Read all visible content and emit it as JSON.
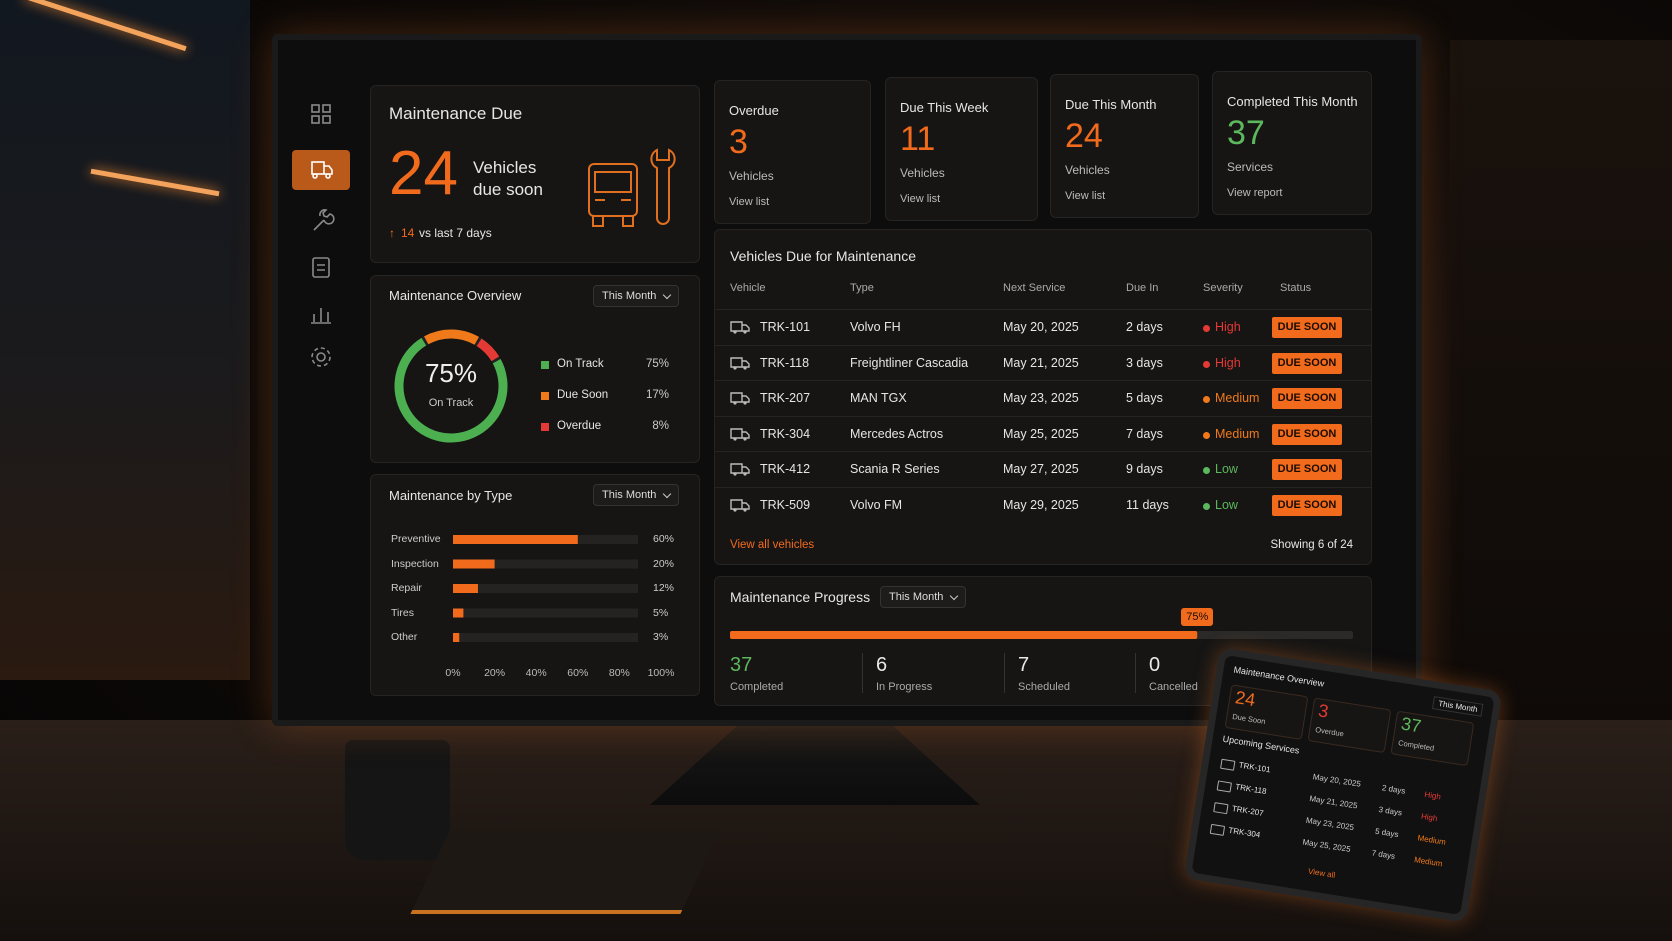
{
  "due_card": {
    "title": "Maintenance Due",
    "value": "24",
    "unit": "Vehicles",
    "unit_sub": "due soon",
    "change": "14",
    "change_text": "vs last 7 days"
  },
  "kpis": [
    {
      "title": "Overdue",
      "value": "3",
      "unit": "Vehicles",
      "link": "View list",
      "color": "#f26b1d"
    },
    {
      "title": "Due This Week",
      "value": "11",
      "unit": "Vehicles",
      "link": "View list",
      "color": "#f26b1d"
    },
    {
      "title": "Due This Month",
      "value": "24",
      "unit": "Vehicles",
      "link": "View list",
      "color": "#f26b1d"
    },
    {
      "title": "Completed This Month",
      "value": "37",
      "unit": "Services",
      "link": "View report",
      "color": "#5cb85c"
    }
  ],
  "overview": {
    "title": "Maintenance Overview",
    "filter": "This Month",
    "center_value": "75%",
    "center_label": "On Track",
    "segments": [
      {
        "name": "On Track",
        "value": 75,
        "label": "75%",
        "color": "#4caf50"
      },
      {
        "name": "Due Soon",
        "value": 17,
        "label": "17%",
        "color": "#f07a1a"
      },
      {
        "name": "Overdue",
        "value": 8,
        "label": "8%",
        "color": "#e53935"
      }
    ]
  },
  "by_type": {
    "title": "Maintenance by Type",
    "filter": "This Month",
    "color": "#f26b1d",
    "categories": [
      "Preventive",
      "Inspection",
      "Repair",
      "Tires",
      "Other"
    ],
    "values": [
      60,
      20,
      12,
      5,
      3
    ],
    "value_labels": [
      "60%",
      "20%",
      "12%",
      "5%",
      "3%"
    ],
    "xlim": [
      0,
      100
    ],
    "xticks": [
      {
        "value": 0,
        "label": "0%"
      },
      {
        "value": 20,
        "label": "20%"
      },
      {
        "value": 40,
        "label": "40%"
      },
      {
        "value": 60,
        "label": "60%"
      },
      {
        "value": 80,
        "label": "80%"
      },
      {
        "value": 100,
        "label": "100%"
      }
    ]
  },
  "table": {
    "title": "Vehicles Due for Maintenance",
    "columns": [
      "Vehicle",
      "Type",
      "Next Service",
      "Due In",
      "Severity",
      "Status"
    ],
    "rows": [
      {
        "vehicle": "TRK-101",
        "type": "Volvo FH",
        "next_service": "May 20, 2025",
        "due_in": "2 days",
        "severity": "High",
        "severity_color": "#e53935",
        "status": "DUE SOON"
      },
      {
        "vehicle": "TRK-118",
        "type": "Freightliner Cascadia",
        "next_service": "May 21, 2025",
        "due_in": "3 days",
        "severity": "High",
        "severity_color": "#e53935",
        "status": "DUE SOON"
      },
      {
        "vehicle": "TRK-207",
        "type": "MAN TGX",
        "next_service": "May 23, 2025",
        "due_in": "5 days",
        "severity": "Medium",
        "severity_color": "#f07a1a",
        "status": "DUE SOON"
      },
      {
        "vehicle": "TRK-304",
        "type": "Mercedes Actros",
        "next_service": "May 25, 2025",
        "due_in": "7 days",
        "severity": "Medium",
        "severity_color": "#f07a1a",
        "status": "DUE SOON"
      },
      {
        "vehicle": "TRK-412",
        "type": "Scania R Series",
        "next_service": "May 27, 2025",
        "due_in": "9 days",
        "severity": "Low",
        "severity_color": "#5cb85c",
        "status": "DUE SOON"
      },
      {
        "vehicle": "TRK-509",
        "type": "Volvo FM",
        "next_service": "May 29, 2025",
        "due_in": "11 days",
        "severity": "Low",
        "severity_color": "#5cb85c",
        "status": "DUE SOON"
      }
    ],
    "view_all": "View all vehicles",
    "showing": "Showing 6 of 24"
  },
  "progress": {
    "title": "Maintenance Progress",
    "filter": "This Month",
    "value": 75,
    "value_label": "75%",
    "range": [
      0,
      100
    ],
    "stats": [
      {
        "value": "37",
        "label": "Completed",
        "color": "#5cb85c"
      },
      {
        "value": "6",
        "label": "In Progress",
        "color": "#e8e8e8"
      },
      {
        "value": "7",
        "label": "Scheduled",
        "color": "#e8e8e8"
      },
      {
        "value": "0",
        "label": "Cancelled",
        "color": "#e8e8e8"
      }
    ]
  },
  "tablet": {
    "title": "Maintenance Overview",
    "filter": "This Month",
    "stats": [
      {
        "value": "24",
        "label": "Due Soon",
        "color": "#f26b1d"
      },
      {
        "value": "3",
        "label": "Overdue",
        "color": "#e53935"
      },
      {
        "value": "37",
        "label": "Completed",
        "color": "#5cb85c"
      }
    ],
    "section": "Upcoming Services",
    "rows": [
      {
        "vehicle": "TRK-101",
        "date": "May 20, 2025",
        "due_in": "2 days",
        "severity": "High",
        "severity_color": "#e53935"
      },
      {
        "vehicle": "TRK-118",
        "date": "May 21, 2025",
        "due_in": "3 days",
        "severity": "High",
        "severity_color": "#e53935"
      },
      {
        "vehicle": "TRK-207",
        "date": "May 23, 2025",
        "due_in": "5 days",
        "severity": "Medium",
        "severity_color": "#f07a1a"
      },
      {
        "vehicle": "TRK-304",
        "date": "May 25, 2025",
        "due_in": "7 days",
        "severity": "Medium",
        "severity_color": "#f07a1a"
      }
    ],
    "view_all": "View all"
  }
}
